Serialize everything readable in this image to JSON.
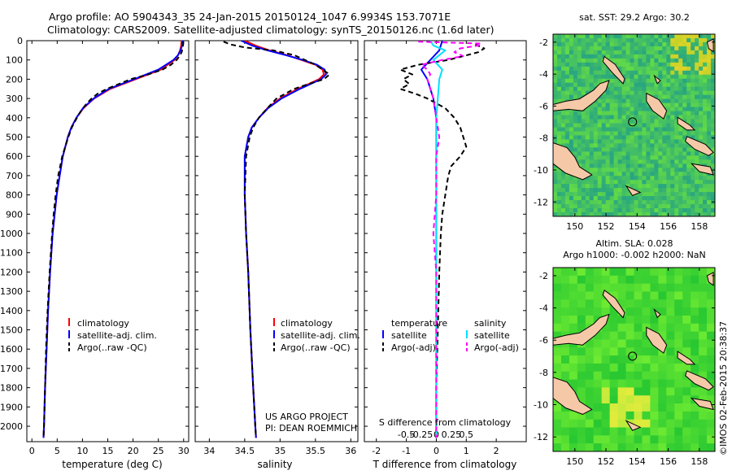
{
  "header": {
    "line1": "Argo profile: AO 5904343_35 24-Jan-2015 20150124_1047 6.9934S 153.7071E",
    "line2": "Climatology: CARS2009. Satellite-adjusted climatology: synTS_20150126.nc (1.6d later)"
  },
  "footer": {
    "project_line1": "US ARGO PROJECT",
    "project_line2": "PI: DEAN ROEMMICH",
    "timestamp": "©IMOS 02-Feb-2015 20:38:37"
  },
  "colors": {
    "climatology": "#ff0000",
    "satellite": "#0000ff",
    "argo": "#000000",
    "salinity_satellite": "#00e0ff",
    "salinity_argo": "#ff00ff",
    "land": "#f5c9a8"
  },
  "chart_data": [
    {
      "type": "line",
      "id": "temperature_profile",
      "xlabel": "temperature (deg C)",
      "ylabel": "",
      "xlim": [
        -1,
        31
      ],
      "ylim": [
        2080,
        0
      ],
      "xticks": [
        0,
        5,
        10,
        15,
        20,
        25,
        30
      ],
      "xtick_labels": [
        "0",
        "5",
        "10",
        "15",
        "20",
        "25",
        "30"
      ],
      "yticks": [
        0,
        100,
        200,
        300,
        400,
        500,
        600,
        700,
        800,
        900,
        1000,
        1100,
        1200,
        1300,
        1400,
        1500,
        1600,
        1700,
        1800,
        1900,
        2000
      ],
      "ytick_labels": [
        "0",
        "100",
        "200",
        "300",
        "400",
        "500",
        "600",
        "700",
        "800",
        "900",
        "1000",
        "1100",
        "1200",
        "1300",
        "1400",
        "1500",
        "1600",
        "1700",
        "1800",
        "1900",
        "2000"
      ],
      "legend": [
        "climatology",
        "satellite-adj. clim.",
        "Argo(..raw -QC)"
      ],
      "series": [
        {
          "name": "climatology",
          "color": "#ff0000",
          "depth": [
            0,
            25,
            50,
            75,
            100,
            150,
            200,
            250,
            300,
            350,
            400,
            450,
            500,
            600,
            700,
            800,
            900,
            1000,
            1200,
            1400,
            1600,
            1800,
            2000,
            2060
          ],
          "values": [
            29.6,
            29.5,
            29.3,
            28.9,
            28.2,
            25.5,
            20.5,
            15.5,
            12.3,
            10.2,
            8.8,
            7.8,
            7.1,
            6.1,
            5.5,
            4.9,
            4.5,
            4.1,
            3.6,
            3.2,
            2.9,
            2.6,
            2.4,
            2.3
          ]
        },
        {
          "name": "satellite-adj. clim.",
          "color": "#0000ff",
          "depth": [
            0,
            25,
            50,
            75,
            100,
            150,
            200,
            250,
            300,
            350,
            400,
            450,
            500,
            600,
            700,
            800,
            900,
            1000,
            1200,
            1400,
            1600,
            1800,
            2000,
            2060
          ],
          "values": [
            29.8,
            29.7,
            29.4,
            28.9,
            28.0,
            25.0,
            20.2,
            15.2,
            12.2,
            10.1,
            8.8,
            7.8,
            7.1,
            6.1,
            5.5,
            4.9,
            4.5,
            4.1,
            3.6,
            3.2,
            2.9,
            2.6,
            2.4,
            2.3
          ]
        },
        {
          "name": "Argo(..raw -QC)",
          "color": "#000000",
          "dashed": true,
          "depth": [
            5,
            20,
            40,
            60,
            80,
            100,
            125,
            150,
            175,
            200,
            225,
            250,
            275,
            300,
            330,
            360,
            400,
            450,
            500,
            600,
            700,
            800,
            900,
            1000,
            1200,
            1400,
            1600,
            1800,
            2000,
            2060
          ],
          "values": [
            29.9,
            29.9,
            29.8,
            29.6,
            29.2,
            28.6,
            27.5,
            25.8,
            23.0,
            19.5,
            17.2,
            14.8,
            13.0,
            11.8,
            10.7,
            9.8,
            8.9,
            7.9,
            7.2,
            6.0,
            5.2,
            4.7,
            4.3,
            4.0,
            3.5,
            3.1,
            2.8,
            2.6,
            2.4,
            2.3
          ]
        }
      ]
    },
    {
      "type": "line",
      "id": "salinity_profile",
      "xlabel": "salinity",
      "xlim": [
        33.8,
        36.1
      ],
      "ylim": [
        2080,
        0
      ],
      "xticks": [
        34,
        34.5,
        35,
        35.5,
        36
      ],
      "xtick_labels": [
        "34",
        "34.5",
        "35",
        "35.5",
        "36"
      ],
      "legend": [
        "climatology",
        "satellite-adj. clim.",
        "Argo(..raw -QC)"
      ],
      "series": [
        {
          "name": "climatology",
          "color": "#ff0000",
          "depth": [
            0,
            25,
            50,
            75,
            100,
            125,
            150,
            175,
            200,
            250,
            300,
            350,
            400,
            450,
            500,
            600,
            800,
            1000,
            1200,
            1500,
            1800,
            2000,
            2060
          ],
          "values": [
            34.5,
            34.65,
            34.85,
            35.1,
            35.3,
            35.5,
            35.6,
            35.62,
            35.55,
            35.25,
            35.0,
            34.82,
            34.7,
            34.6,
            34.55,
            34.5,
            34.5,
            34.52,
            34.55,
            34.58,
            34.62,
            34.65,
            34.66
          ]
        },
        {
          "name": "satellite-adj. clim.",
          "color": "#0000ff",
          "depth": [
            0,
            25,
            50,
            75,
            100,
            125,
            150,
            175,
            200,
            250,
            300,
            350,
            400,
            450,
            500,
            600,
            800,
            1000,
            1200,
            1500,
            1800,
            2000,
            2060
          ],
          "values": [
            34.45,
            34.6,
            34.82,
            35.08,
            35.32,
            35.52,
            35.63,
            35.65,
            35.58,
            35.28,
            35.02,
            34.83,
            34.7,
            34.6,
            34.55,
            34.5,
            34.5,
            34.52,
            34.55,
            34.58,
            34.62,
            34.65,
            34.66
          ]
        },
        {
          "name": "Argo(..raw -QC)",
          "color": "#000000",
          "dashed": true,
          "depth": [
            5,
            20,
            35,
            50,
            75,
            100,
            125,
            150,
            175,
            200,
            225,
            250,
            300,
            350,
            400,
            450,
            500,
            600,
            800,
            1000,
            1200,
            1500,
            1800,
            2000,
            2060
          ],
          "values": [
            34.2,
            34.3,
            34.5,
            34.9,
            35.2,
            35.35,
            35.5,
            35.6,
            35.7,
            35.62,
            35.4,
            35.2,
            34.95,
            34.82,
            34.7,
            34.62,
            34.57,
            34.52,
            34.5,
            34.52,
            34.55,
            34.58,
            34.62,
            34.65,
            34.66
          ]
        }
      ]
    },
    {
      "type": "line",
      "id": "difference_profile",
      "xlabel": "T difference from climatology",
      "xlabel_top": "S difference from climatology",
      "xlim": [
        -2.4,
        3.0
      ],
      "ylim": [
        2080,
        0
      ],
      "xticks": [
        -2,
        -1,
        0,
        1,
        2
      ],
      "xtick_labels": [
        "-2",
        "-1",
        "0",
        "1",
        "2"
      ],
      "xticks_top": [
        -1,
        -0.5,
        0,
        0.5,
        1
      ],
      "xtick_labels_top": [
        "-0.5",
        "-0.25",
        "0",
        "0.25",
        "0.5"
      ],
      "legend_temperature": {
        "title": "temperature",
        "items": [
          "satellite",
          "Argo(-adj)"
        ]
      },
      "legend_salinity": {
        "title": "salinity",
        "items": [
          "satellite",
          "Argo(-adj)"
        ]
      },
      "series": [
        {
          "name": "temperature satellite",
          "color": "#0000ff",
          "depth": [
            0,
            50,
            100,
            150,
            200,
            300,
            400,
            500,
            700,
            1000,
            1500,
            2000,
            2060
          ],
          "values": [
            0.2,
            0.1,
            -0.2,
            -0.5,
            -0.3,
            -0.1,
            0.0,
            0.0,
            0.0,
            0.0,
            0.0,
            0.0,
            0.0
          ]
        },
        {
          "name": "temperature Argo(-adj)",
          "color": "#000000",
          "dashed": true,
          "depth": [
            20,
            40,
            60,
            80,
            100,
            125,
            150,
            175,
            200,
            225,
            250,
            275,
            300,
            350,
            400,
            450,
            500,
            550,
            600,
            650,
            700,
            800,
            900,
            1000,
            1200,
            1500,
            1800,
            2000,
            2060
          ],
          "values": [
            1.3,
            1.6,
            1.4,
            0.9,
            0.4,
            -0.6,
            -1.2,
            -0.8,
            -1.1,
            -0.9,
            -1.2,
            -0.7,
            -0.3,
            0.3,
            0.6,
            0.8,
            0.9,
            1.0,
            0.8,
            0.5,
            0.4,
            0.3,
            0.2,
            0.15,
            0.1,
            0.05,
            0.0,
            0.0,
            0.0
          ]
        },
        {
          "name": "salinity satellite",
          "color": "#00e0ff",
          "depth": [
            0,
            25,
            50,
            75,
            100,
            150,
            200,
            300,
            400,
            500,
            700,
            1000,
            1500,
            2000,
            2060
          ],
          "values": [
            -0.2,
            -0.1,
            0.3,
            0.1,
            -0.1,
            0.2,
            0.1,
            0.05,
            0.0,
            0.0,
            0.0,
            0.0,
            0.0,
            0.0,
            0.0
          ]
        },
        {
          "name": "salinity Argo(-adj)",
          "color": "#ff00ff",
          "dashed": true,
          "depth": [
            5,
            15,
            25,
            40,
            60,
            80,
            100,
            125,
            150,
            175,
            200,
            250,
            300,
            400,
            500,
            600,
            700,
            800,
            1000,
            1200,
            1500,
            1800,
            2000,
            2060
          ],
          "values": [
            -0.6,
            1.5,
            1.4,
            0.8,
            0.6,
            0.9,
            0.2,
            -0.5,
            -0.3,
            -0.2,
            -0.3,
            -0.2,
            -0.1,
            0.0,
            0.1,
            0.0,
            0.0,
            0.0,
            -0.1,
            0.0,
            0.0,
            0.0,
            0.0,
            0.0
          ]
        }
      ]
    },
    {
      "type": "heatmap",
      "id": "sst_map",
      "title": "sat. SST: 29.2  Argo: 30.2",
      "xlim": [
        148.6,
        159.0
      ],
      "ylim": [
        -12.9,
        -1.5
      ],
      "xticks": [
        150,
        152,
        154,
        156,
        158
      ],
      "xtick_labels": [
        "150",
        "152",
        "154",
        "156",
        "158"
      ],
      "yticks": [
        -2,
        -4,
        -6,
        -8,
        -10,
        -12
      ],
      "ytick_labels": [
        "-2",
        "-4",
        "-6",
        "-8",
        "-10",
        "-12"
      ],
      "argo_position": {
        "lon": 153.7071,
        "lat": -6.9934
      }
    },
    {
      "type": "heatmap",
      "id": "sla_map",
      "title_line1": "Altim. SLA: 0.028",
      "title_line2": "Argo h1000: -0.002 h2000: NaN",
      "xlim": [
        148.6,
        159.0
      ],
      "ylim": [
        -12.9,
        -1.5
      ],
      "xticks": [
        150,
        152,
        154,
        156,
        158
      ],
      "xtick_labels": [
        "150",
        "152",
        "154",
        "156",
        "158"
      ],
      "yticks": [
        -2,
        -4,
        -6,
        -8,
        -10,
        -12
      ],
      "ytick_labels": [
        "-2",
        "-4",
        "-6",
        "-8",
        "-10",
        "-12"
      ],
      "argo_position": {
        "lon": 153.7071,
        "lat": -6.9934
      }
    }
  ]
}
